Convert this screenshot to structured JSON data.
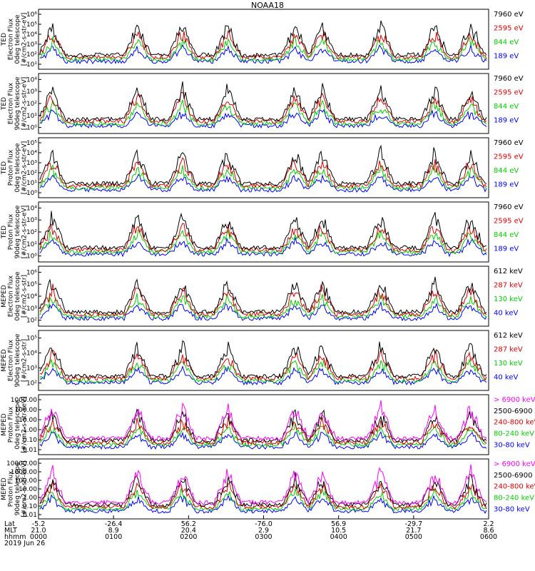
{
  "title": "NOAA18",
  "date_label": "2019 Jun 26",
  "x_axis": {
    "row_labels": [
      "Lat",
      "MLT",
      "hhmm"
    ],
    "ticks": [
      {
        "lat": "-5.2",
        "mlt": "21.0",
        "hhmm": "0000"
      },
      {
        "lat": "-26.4",
        "mlt": "8.9",
        "hhmm": "0100"
      },
      {
        "lat": "56.2",
        "mlt": "20.4",
        "hhmm": "0200"
      },
      {
        "lat": "-76.0",
        "mlt": "2.9",
        "hhmm": "0300"
      },
      {
        "lat": "56.9",
        "mlt": "10.5",
        "hhmm": "0400"
      },
      {
        "lat": "-29.7",
        "mlt": "21.7",
        "hhmm": "0500"
      },
      {
        "lat": "2.2",
        "mlt": "8.6",
        "hhmm": "0600"
      }
    ]
  },
  "colors": {
    "black": "#000000",
    "red": "#e00000",
    "green": "#00d000",
    "blue": "#0000ff",
    "magenta": "#ff00ff"
  },
  "chart_data": [
    {
      "type": "line",
      "ylabel": [
        "TED",
        "Electron Flux",
        "0deg telescope",
        "[#/cm2-s-str-eV]"
      ],
      "scale": "log",
      "yticks": [
        "10¹",
        "10²",
        "10³",
        "10⁴",
        "10⁵",
        "10⁶"
      ],
      "ylim": [
        1,
        6
      ],
      "legend": [
        {
          "label": "7960 eV",
          "color": "#000000"
        },
        {
          "label": "2595 eV",
          "color": "#e00000"
        },
        {
          "label": "844 eV",
          "color": "#00d000"
        },
        {
          "label": "189 eV",
          "color": "#0000ff"
        }
      ]
    },
    {
      "type": "line",
      "ylabel": [
        "TED",
        "Electron Flux",
        "90deg telescope",
        "[#/cm2-s-str-eV]"
      ],
      "scale": "log",
      "yticks": [
        "10⁰",
        "10¹",
        "10²",
        "10³",
        "10⁴"
      ],
      "ylim": [
        0,
        4.5
      ],
      "legend": [
        {
          "label": "7960 eV",
          "color": "#000000"
        },
        {
          "label": "2595 eV",
          "color": "#e00000"
        },
        {
          "label": "844 eV",
          "color": "#00d000"
        },
        {
          "label": "189 eV",
          "color": "#0000ff"
        }
      ]
    },
    {
      "type": "line",
      "ylabel": [
        "TED",
        "Proton Flux",
        "0deg telescope",
        "[#/cm2-s-str-eV]"
      ],
      "scale": "log",
      "yticks": [
        "10⁰",
        "10¹",
        "10²",
        "10³",
        "10⁴",
        "10⁵"
      ],
      "ylim": [
        0,
        5
      ],
      "legend": [
        {
          "label": "7960 eV",
          "color": "#000000"
        },
        {
          "label": "2595 eV",
          "color": "#e00000"
        },
        {
          "label": "844 eV",
          "color": "#00d000"
        },
        {
          "label": "189 eV",
          "color": "#0000ff"
        }
      ]
    },
    {
      "type": "line",
      "ylabel": [
        "TED",
        "Proton Flux",
        "90deg telescope",
        "[#/cm2-s-str-eV]"
      ],
      "scale": "log",
      "yticks": [
        "10⁰",
        "10¹",
        "10²",
        "10³",
        "10⁴"
      ],
      "ylim": [
        0,
        4.5
      ],
      "legend": [
        {
          "label": "7960 eV",
          "color": "#000000"
        },
        {
          "label": "2595 eV",
          "color": "#e00000"
        },
        {
          "label": "844 eV",
          "color": "#00d000"
        },
        {
          "label": "189 eV",
          "color": "#0000ff"
        }
      ]
    },
    {
      "type": "line",
      "ylabel": [
        "MEPED",
        "Electron Flux",
        "0deg telescope",
        "[#/cm2-s-str]"
      ],
      "scale": "log",
      "yticks": [
        "10²",
        "10³",
        "10⁴",
        "10⁵",
        "10⁶"
      ],
      "ylim": [
        1.8,
        6
      ],
      "legend": [
        {
          "label": "612 keV",
          "color": "#000000"
        },
        {
          "label": "287 keV",
          "color": "#e00000"
        },
        {
          "label": "130 keV",
          "color": "#00d000"
        },
        {
          "label": "40 keV",
          "color": "#0000ff"
        }
      ]
    },
    {
      "type": "line",
      "ylabel": [
        "MEPED",
        "Electron Flux",
        "90deg telescope",
        "[#/cm2-s-str]"
      ],
      "scale": "log",
      "yticks": [
        "10²",
        "10³",
        "10⁴",
        "10⁵"
      ],
      "ylim": [
        1.8,
        5.7
      ],
      "legend": [
        {
          "label": "612 keV",
          "color": "#000000"
        },
        {
          "label": "287 keV",
          "color": "#e00000"
        },
        {
          "label": "130 keV",
          "color": "#00d000"
        },
        {
          "label": "40 keV",
          "color": "#0000ff"
        }
      ]
    },
    {
      "type": "line",
      "ylabel": [
        "MEPED",
        "Proton Flux",
        "0deg telescope",
        "[#/cm2-s-str-keV]"
      ],
      "scale": "log",
      "yticks": [
        "0.01",
        "0.10",
        "1.00",
        "10.00",
        "100.00",
        "1000.00"
      ],
      "ylim": [
        -2,
        4
      ],
      "legend": [
        {
          "label": "> 6900 keV",
          "color": "#ff00ff"
        },
        {
          "label": "2500-6900",
          "color": "#000000"
        },
        {
          "label": "240-800 keV",
          "color": "#e00000"
        },
        {
          "label": "80-240 keV",
          "color": "#00d000"
        },
        {
          "label": "30-80 keV",
          "color": "#0000ff"
        }
      ]
    },
    {
      "type": "line",
      "ylabel": [
        "MEPED",
        "Proton Flux",
        "90deg telescope",
        "[#/cm2-s-str-keV]"
      ],
      "scale": "log",
      "yticks": [
        "0.01",
        "0.10",
        "1.00",
        "10.00",
        "100.00",
        "1000.00",
        "10000.00"
      ],
      "ylim": [
        -2,
        4
      ],
      "legend": [
        {
          "label": "> 6900 keV",
          "color": "#ff00ff"
        },
        {
          "label": "2500-6900",
          "color": "#000000"
        },
        {
          "label": "240-800 keV",
          "color": "#e00000"
        },
        {
          "label": "80-240 keV",
          "color": "#00d000"
        },
        {
          "label": "30-80 keV",
          "color": "#0000ff"
        }
      ]
    }
  ]
}
